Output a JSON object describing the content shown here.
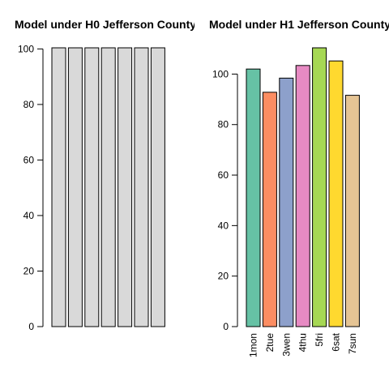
{
  "chart_data": [
    {
      "type": "bar",
      "title": "Model under H0 Jefferson County",
      "categories": [
        "1mon",
        "2tue",
        "3wen",
        "4thu",
        "5fri",
        "6sat",
        "7sun"
      ],
      "show_category_labels": false,
      "values": [
        100.4,
        100.4,
        100.4,
        100.4,
        100.4,
        100.4,
        100.4
      ],
      "yticks": [
        0,
        20,
        40,
        60,
        80,
        100
      ],
      "ylim": [
        0,
        100.4
      ],
      "colors": [
        "#D9D9D9",
        "#D9D9D9",
        "#D9D9D9",
        "#D9D9D9",
        "#D9D9D9",
        "#D9D9D9",
        "#D9D9D9"
      ],
      "grid": false
    },
    {
      "type": "bar",
      "title": "Model under H1 Jefferson County",
      "categories": [
        "1mon",
        "2tue",
        "3wen",
        "4thu",
        "5fri",
        "6sat",
        "7sun"
      ],
      "show_category_labels": true,
      "values": [
        102,
        92.8,
        98.4,
        103.4,
        110.4,
        105.2,
        91.6
      ],
      "yticks": [
        0,
        20,
        40,
        60,
        80,
        100
      ],
      "ylim": [
        0,
        110.4
      ],
      "colors": [
        "#66C2A5",
        "#FC8D62",
        "#8DA0CB",
        "#E78AC3",
        "#A6D854",
        "#FFD92F",
        "#E5C494"
      ],
      "grid": false
    }
  ]
}
